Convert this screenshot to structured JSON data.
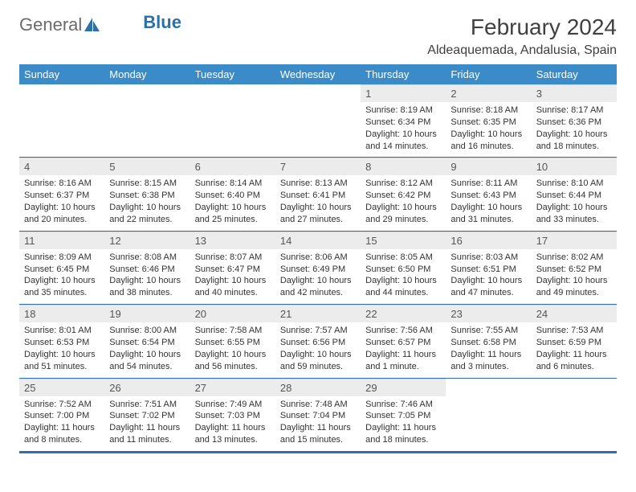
{
  "brand": {
    "part1": "General",
    "part2": "Blue"
  },
  "title": "February 2024",
  "location": "Aldeaquemada, Andalusia, Spain",
  "colors": {
    "header_bg": "#3b8bc8",
    "header_text": "#ffffff",
    "rule": "#2f6fa8",
    "daynum_bg": "#ececec",
    "text": "#333333",
    "logo_gray": "#6b6b6b",
    "logo_blue": "#2f6fa8"
  },
  "day_names": [
    "Sunday",
    "Monday",
    "Tuesday",
    "Wednesday",
    "Thursday",
    "Friday",
    "Saturday"
  ],
  "weeks": [
    [
      {
        "n": "",
        "sr": "",
        "ss": "",
        "dl": "",
        "empty": true
      },
      {
        "n": "",
        "sr": "",
        "ss": "",
        "dl": "",
        "empty": true
      },
      {
        "n": "",
        "sr": "",
        "ss": "",
        "dl": "",
        "empty": true
      },
      {
        "n": "",
        "sr": "",
        "ss": "",
        "dl": "",
        "empty": true
      },
      {
        "n": "1",
        "sr": "Sunrise: 8:19 AM",
        "ss": "Sunset: 6:34 PM",
        "dl": "Daylight: 10 hours and 14 minutes."
      },
      {
        "n": "2",
        "sr": "Sunrise: 8:18 AM",
        "ss": "Sunset: 6:35 PM",
        "dl": "Daylight: 10 hours and 16 minutes."
      },
      {
        "n": "3",
        "sr": "Sunrise: 8:17 AM",
        "ss": "Sunset: 6:36 PM",
        "dl": "Daylight: 10 hours and 18 minutes."
      }
    ],
    [
      {
        "n": "4",
        "sr": "Sunrise: 8:16 AM",
        "ss": "Sunset: 6:37 PM",
        "dl": "Daylight: 10 hours and 20 minutes."
      },
      {
        "n": "5",
        "sr": "Sunrise: 8:15 AM",
        "ss": "Sunset: 6:38 PM",
        "dl": "Daylight: 10 hours and 22 minutes."
      },
      {
        "n": "6",
        "sr": "Sunrise: 8:14 AM",
        "ss": "Sunset: 6:40 PM",
        "dl": "Daylight: 10 hours and 25 minutes."
      },
      {
        "n": "7",
        "sr": "Sunrise: 8:13 AM",
        "ss": "Sunset: 6:41 PM",
        "dl": "Daylight: 10 hours and 27 minutes."
      },
      {
        "n": "8",
        "sr": "Sunrise: 8:12 AM",
        "ss": "Sunset: 6:42 PM",
        "dl": "Daylight: 10 hours and 29 minutes."
      },
      {
        "n": "9",
        "sr": "Sunrise: 8:11 AM",
        "ss": "Sunset: 6:43 PM",
        "dl": "Daylight: 10 hours and 31 minutes."
      },
      {
        "n": "10",
        "sr": "Sunrise: 8:10 AM",
        "ss": "Sunset: 6:44 PM",
        "dl": "Daylight: 10 hours and 33 minutes."
      }
    ],
    [
      {
        "n": "11",
        "sr": "Sunrise: 8:09 AM",
        "ss": "Sunset: 6:45 PM",
        "dl": "Daylight: 10 hours and 35 minutes."
      },
      {
        "n": "12",
        "sr": "Sunrise: 8:08 AM",
        "ss": "Sunset: 6:46 PM",
        "dl": "Daylight: 10 hours and 38 minutes."
      },
      {
        "n": "13",
        "sr": "Sunrise: 8:07 AM",
        "ss": "Sunset: 6:47 PM",
        "dl": "Daylight: 10 hours and 40 minutes."
      },
      {
        "n": "14",
        "sr": "Sunrise: 8:06 AM",
        "ss": "Sunset: 6:49 PM",
        "dl": "Daylight: 10 hours and 42 minutes."
      },
      {
        "n": "15",
        "sr": "Sunrise: 8:05 AM",
        "ss": "Sunset: 6:50 PM",
        "dl": "Daylight: 10 hours and 44 minutes."
      },
      {
        "n": "16",
        "sr": "Sunrise: 8:03 AM",
        "ss": "Sunset: 6:51 PM",
        "dl": "Daylight: 10 hours and 47 minutes."
      },
      {
        "n": "17",
        "sr": "Sunrise: 8:02 AM",
        "ss": "Sunset: 6:52 PM",
        "dl": "Daylight: 10 hours and 49 minutes."
      }
    ],
    [
      {
        "n": "18",
        "sr": "Sunrise: 8:01 AM",
        "ss": "Sunset: 6:53 PM",
        "dl": "Daylight: 10 hours and 51 minutes."
      },
      {
        "n": "19",
        "sr": "Sunrise: 8:00 AM",
        "ss": "Sunset: 6:54 PM",
        "dl": "Daylight: 10 hours and 54 minutes."
      },
      {
        "n": "20",
        "sr": "Sunrise: 7:58 AM",
        "ss": "Sunset: 6:55 PM",
        "dl": "Daylight: 10 hours and 56 minutes."
      },
      {
        "n": "21",
        "sr": "Sunrise: 7:57 AM",
        "ss": "Sunset: 6:56 PM",
        "dl": "Daylight: 10 hours and 59 minutes."
      },
      {
        "n": "22",
        "sr": "Sunrise: 7:56 AM",
        "ss": "Sunset: 6:57 PM",
        "dl": "Daylight: 11 hours and 1 minute."
      },
      {
        "n": "23",
        "sr": "Sunrise: 7:55 AM",
        "ss": "Sunset: 6:58 PM",
        "dl": "Daylight: 11 hours and 3 minutes."
      },
      {
        "n": "24",
        "sr": "Sunrise: 7:53 AM",
        "ss": "Sunset: 6:59 PM",
        "dl": "Daylight: 11 hours and 6 minutes."
      }
    ],
    [
      {
        "n": "25",
        "sr": "Sunrise: 7:52 AM",
        "ss": "Sunset: 7:00 PM",
        "dl": "Daylight: 11 hours and 8 minutes."
      },
      {
        "n": "26",
        "sr": "Sunrise: 7:51 AM",
        "ss": "Sunset: 7:02 PM",
        "dl": "Daylight: 11 hours and 11 minutes."
      },
      {
        "n": "27",
        "sr": "Sunrise: 7:49 AM",
        "ss": "Sunset: 7:03 PM",
        "dl": "Daylight: 11 hours and 13 minutes."
      },
      {
        "n": "28",
        "sr": "Sunrise: 7:48 AM",
        "ss": "Sunset: 7:04 PM",
        "dl": "Daylight: 11 hours and 15 minutes."
      },
      {
        "n": "29",
        "sr": "Sunrise: 7:46 AM",
        "ss": "Sunset: 7:05 PM",
        "dl": "Daylight: 11 hours and 18 minutes."
      },
      {
        "n": "",
        "sr": "",
        "ss": "",
        "dl": "",
        "empty": true
      },
      {
        "n": "",
        "sr": "",
        "ss": "",
        "dl": "",
        "empty": true
      }
    ]
  ]
}
